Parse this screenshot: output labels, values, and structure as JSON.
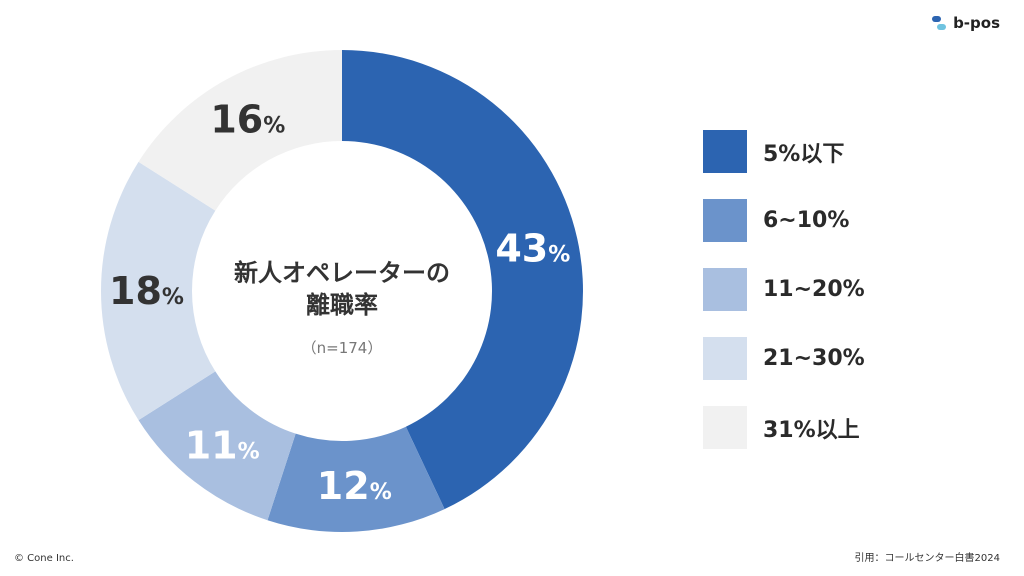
{
  "brand": {
    "name": "b-pos"
  },
  "chart_data": {
    "type": "pie",
    "center_title_line1": "新人オペレーターの",
    "center_title_line2": "離職率",
    "center_subtitle": "（n=174）",
    "categories": [
      "5%以下",
      "6~10%",
      "11~20%",
      "21~30%",
      "31%以上"
    ],
    "values": [
      43,
      12,
      11,
      18,
      16
    ],
    "unit": "%",
    "colors": [
      "#2C64B1",
      "#6B93CB",
      "#A9BFE0",
      "#D4DFEE",
      "#F1F1F1"
    ],
    "label_colors": [
      "#ffffff",
      "#ffffff",
      "#ffffff",
      "#333333",
      "#333333"
    ],
    "legend_position": "right"
  },
  "footer": {
    "copyright": "© Cone Inc.",
    "source": "引用：コールセンター白書2024"
  }
}
